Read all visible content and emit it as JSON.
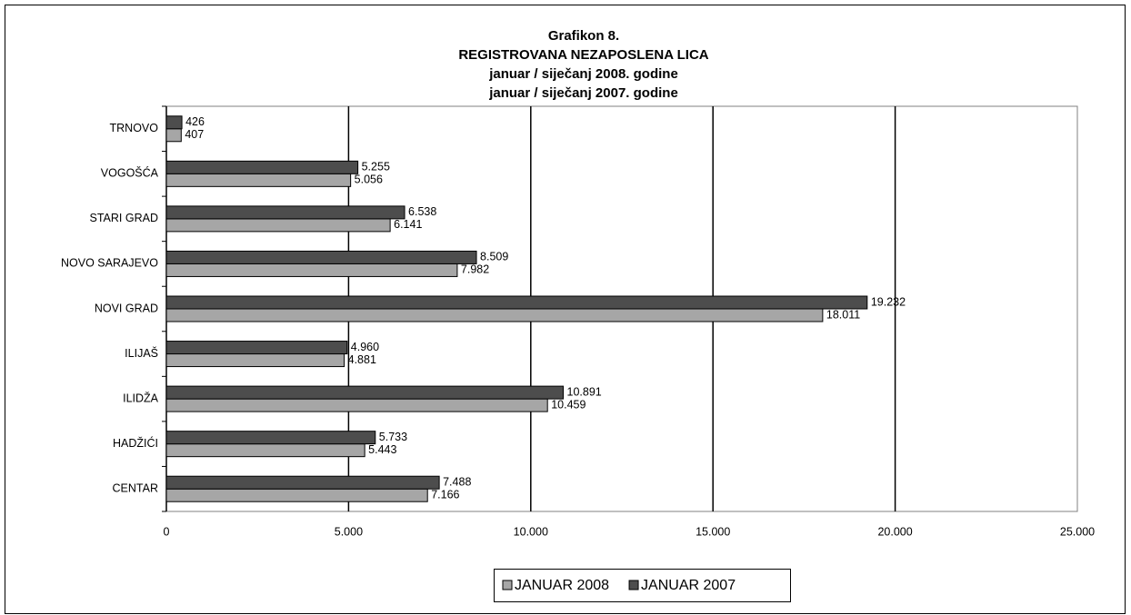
{
  "chart_data": {
    "type": "bar",
    "orientation": "horizontal",
    "title": [
      "Grafikon 8.",
      "REGISTROVANA NEZAPOSLENA LICA",
      "januar / siječanj  2008. godine",
      "januar / siječanj  2007. godine"
    ],
    "categories": [
      "TRNOVO",
      "VOGOŠĆA",
      "STARI GRAD",
      "NOVO SARAJEVO",
      "NOVI GRAD",
      "ILIJAŠ",
      "ILIDŽA",
      "HADŽIĆI",
      "CENTAR"
    ],
    "series": [
      {
        "name": "JANUAR 2008",
        "color": "#a6a6a6",
        "values": [
          407,
          5056,
          6141,
          7982,
          18011,
          4881,
          10459,
          5443,
          7166
        ],
        "value_labels": [
          "407",
          "5.056",
          "6.141",
          "7.982",
          "18.011",
          "4.881",
          "10.459",
          "5.443",
          "7.166"
        ]
      },
      {
        "name": "JANUAR 2007",
        "color": "#4d4d4d",
        "values": [
          426,
          5255,
          6538,
          8509,
          19232,
          4960,
          10891,
          5733,
          7488
        ],
        "value_labels": [
          "426",
          "5.255",
          "6.538",
          "8.509",
          "19.232",
          "4.960",
          "10.891",
          "5.733",
          "7.488"
        ]
      }
    ],
    "xlim": [
      0,
      25000
    ],
    "xticks": [
      0,
      {
        "value": 5000,
        "label": "5.000"
      },
      {
        "value": 10000,
        "label": "10.000"
      },
      {
        "value": 15000,
        "label": "15.000"
      },
      {
        "value": 20000,
        "label": "20.000"
      },
      {
        "value": 25000,
        "label": "25.000"
      }
    ],
    "grid": true,
    "legend": "bottom"
  }
}
